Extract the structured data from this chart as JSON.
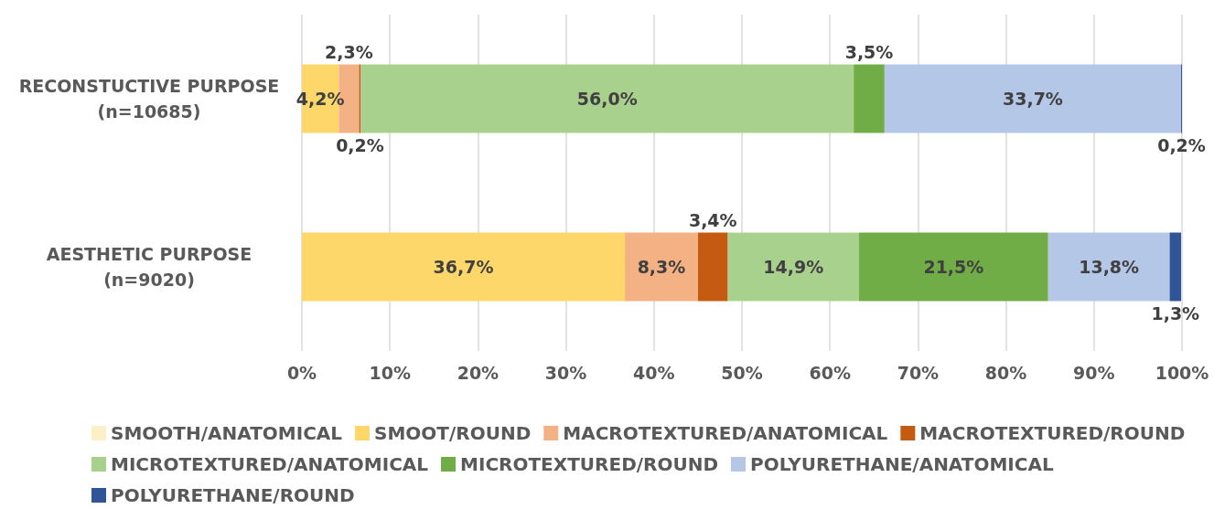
{
  "chart_data": {
    "type": "bar",
    "orientation": "horizontal",
    "stacked": true,
    "categories": [
      "RECONSTUCTIVE PURPOSE\n(n=10685)",
      "AESTHETIC PURPOSE\n(n=9020)"
    ],
    "xlim": [
      0,
      100
    ],
    "xticks": [
      {
        "value": 0,
        "label": "0%"
      },
      {
        "value": 10,
        "label": "10%"
      },
      {
        "value": 20,
        "label": "20%"
      },
      {
        "value": 30,
        "label": "30%"
      },
      {
        "value": 40,
        "label": "40%"
      },
      {
        "value": 50,
        "label": "50%"
      },
      {
        "value": 60,
        "label": "60%"
      },
      {
        "value": 70,
        "label": "70%"
      },
      {
        "value": 80,
        "label": "80%"
      },
      {
        "value": 90,
        "label": "90%"
      },
      {
        "value": 100,
        "label": "100%"
      }
    ],
    "grid": "x",
    "legend": "bottom",
    "series": [
      {
        "name": "SMOOTH/ANATOMICAL",
        "color": "#fdf0c8",
        "values": [
          null,
          null
        ],
        "value_labels": [
          null,
          null
        ]
      },
      {
        "name": "SMOOT/ROUND",
        "color": "#fdd76a",
        "values": [
          4.2,
          36.7
        ],
        "value_labels": [
          "4,2%",
          "36,7%"
        ]
      },
      {
        "name": "MACROTEXTURED/ANATOMICAL",
        "color": "#f4b183",
        "values": [
          2.3,
          8.3
        ],
        "value_labels": [
          "2,3%",
          "8,3%"
        ]
      },
      {
        "name": "MACROTEXTURED/ROUND",
        "color": "#c55a11",
        "values": [
          0.2,
          3.4
        ],
        "value_labels": [
          "0,2%",
          "3,4%"
        ]
      },
      {
        "name": "MICROTEXTURED/ANATOMICAL",
        "color": "#a9d18e",
        "values": [
          56.0,
          14.9
        ],
        "value_labels": [
          "56,0%",
          "14,9%"
        ]
      },
      {
        "name": "MICROTEXTURED/ROUND",
        "color": "#70ad47",
        "values": [
          3.5,
          21.5
        ],
        "value_labels": [
          "3,5%",
          "21,5%"
        ]
      },
      {
        "name": "POLYURETHANE/ANATOMICAL",
        "color": "#b4c7e7",
        "values": [
          33.7,
          13.8
        ],
        "value_labels": [
          "33,7%",
          "13,8%"
        ]
      },
      {
        "name": "POLYURETHANE/ROUND",
        "color": "#2f5597",
        "values": [
          0.2,
          1.3
        ],
        "value_labels": [
          "0,2%",
          "1,3%"
        ]
      }
    ]
  }
}
